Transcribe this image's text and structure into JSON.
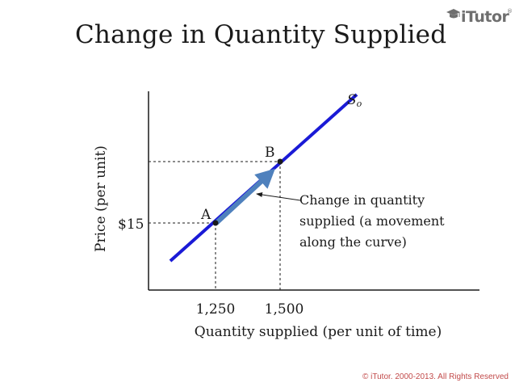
{
  "title": "Change in Quantity Supplied",
  "logo": {
    "text": "iTutor",
    "mark": "®"
  },
  "diagram": {
    "curve_label": "S",
    "curve_label_sub": "o",
    "point_a_label": "A",
    "point_b_label": "B",
    "price_tick": "$15",
    "quantity_tick_a": "1,250",
    "quantity_tick_b": "1,500",
    "y_axis_label": "Price (per unit)",
    "x_axis_label": "Quantity supplied (per unit of time)",
    "annotation_lines": [
      "Change in quantity",
      "supplied (a movement",
      "along the curve)"
    ]
  },
  "colors": {
    "curve": "#1a1ad6",
    "movement_arrow": "#4f81bd",
    "copyright": "#c24a4a"
  },
  "copyright": "© iTutor. 2000-2013. All Rights Reserved"
}
